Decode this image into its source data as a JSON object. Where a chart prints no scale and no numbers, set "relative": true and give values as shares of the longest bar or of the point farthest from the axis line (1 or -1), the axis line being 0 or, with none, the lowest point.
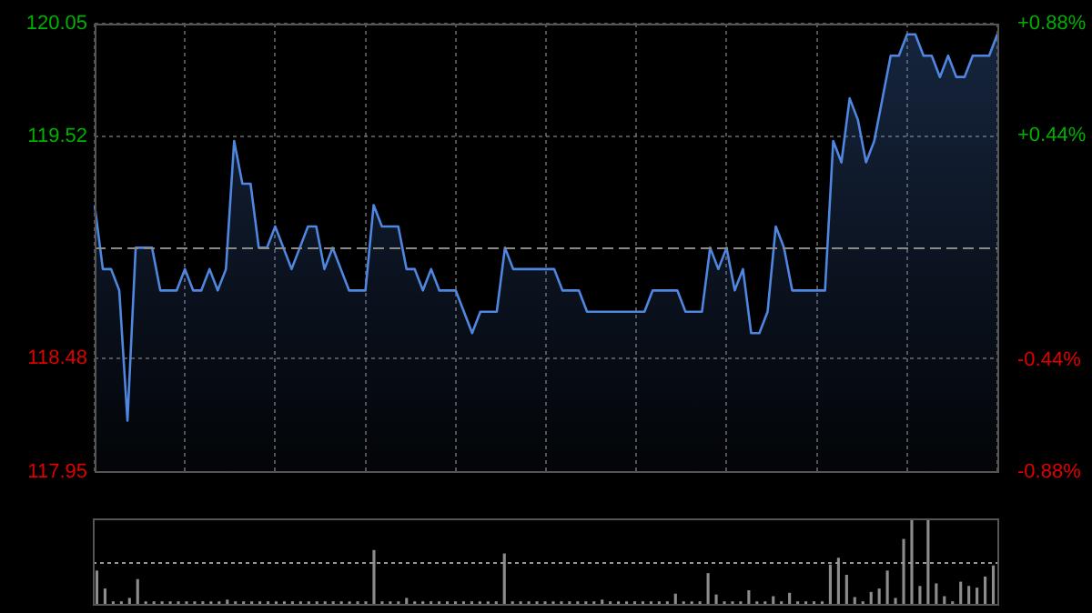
{
  "chart_data": [
    {
      "type": "area",
      "categories": [
        null,
        null,
        null,
        null,
        null,
        null,
        null,
        null,
        null,
        null,
        null,
        null,
        null,
        null,
        null,
        null,
        null,
        null,
        null,
        null,
        null,
        null,
        null,
        null,
        null,
        null,
        null,
        null,
        null,
        null,
        null,
        null,
        null,
        null,
        null,
        null,
        null,
        null,
        null,
        null,
        null,
        null,
        null,
        null,
        null,
        null,
        null,
        null,
        null,
        null,
        null,
        null,
        null,
        null,
        null,
        null,
        null,
        null,
        null,
        null,
        null,
        null,
        null,
        null,
        null,
        null,
        null,
        null,
        null,
        null,
        null,
        null,
        null,
        null,
        null,
        null,
        null,
        null,
        null,
        null,
        null,
        null,
        null,
        null,
        null,
        null,
        null,
        null,
        null,
        null,
        null,
        null,
        null,
        null,
        null,
        null,
        null,
        null,
        null,
        null,
        null,
        null,
        null,
        null,
        null,
        null,
        null,
        null,
        null,
        null,
        null
      ],
      "series": [
        {
          "color": "#4f86e0",
          "values": [
            119.2,
            118.9,
            118.9,
            118.8,
            118.19,
            119.0,
            119.0,
            119.0,
            118.8,
            118.8,
            118.8,
            118.9,
            118.8,
            118.8,
            118.9,
            118.8,
            118.9,
            119.5,
            119.3,
            119.3,
            119.0,
            119.0,
            119.1,
            119.0,
            118.9,
            119.0,
            119.1,
            119.1,
            118.9,
            119.0,
            118.9,
            118.8,
            118.8,
            118.8,
            119.2,
            119.1,
            119.1,
            119.1,
            118.9,
            118.9,
            118.8,
            118.9,
            118.8,
            118.8,
            118.8,
            118.7,
            118.6,
            118.7,
            118.7,
            118.7,
            119.0,
            118.9,
            118.9,
            118.9,
            118.9,
            118.9,
            118.9,
            118.8,
            118.8,
            118.8,
            118.7,
            118.7,
            118.7,
            118.7,
            118.7,
            118.7,
            118.7,
            118.7,
            118.8,
            118.8,
            118.8,
            118.8,
            118.7,
            118.7,
            118.7,
            119.0,
            118.9,
            119.0,
            118.8,
            118.9,
            118.6,
            118.6,
            118.7,
            119.1,
            119.0,
            118.8,
            118.8,
            118.8,
            118.8,
            118.8,
            119.5,
            119.4,
            119.7,
            119.6,
            119.4,
            119.5,
            119.7,
            119.9,
            119.9,
            120.0,
            120.0,
            119.9,
            119.9,
            119.8,
            119.9,
            119.8,
            119.8,
            119.9,
            119.9,
            119.9,
            120.0
          ]
        }
      ],
      "ylim": [
        117.95,
        120.05
      ],
      "yticks": [
        117.95,
        118.48,
        119.52,
        120.05
      ],
      "y2lim": [
        -0.88,
        0.88
      ],
      "y2ticks": [
        {
          "value": -0.88,
          "label": "-0.88%"
        },
        {
          "value": -0.44,
          "label": "-0.44%"
        },
        {
          "value": 0.44,
          "label": "+0.44%"
        },
        {
          "value": 0.88,
          "label": "+0.88%"
        }
      ],
      "ref_lines": [
        {
          "axis": "y",
          "value": 119.0,
          "color": "#8a8a8a",
          "line_style": "dashed"
        }
      ],
      "grid": true,
      "legend": false,
      "marker": "none",
      "line_style": "solid"
    },
    {
      "type": "bar",
      "relative": true,
      "color": "#8c8c8c",
      "legend": false,
      "ref_lines": [
        {
          "axis": "y",
          "value": 0.5,
          "color": "#969696",
          "line_style": "dotted"
        }
      ],
      "categories": [
        null,
        null,
        null,
        null,
        null,
        null,
        null,
        null,
        null,
        null,
        null,
        null,
        null,
        null,
        null,
        null,
        null,
        null,
        null,
        null,
        null,
        null,
        null,
        null,
        null,
        null,
        null,
        null,
        null,
        null,
        null,
        null,
        null,
        null,
        null,
        null,
        null,
        null,
        null,
        null,
        null,
        null,
        null,
        null,
        null,
        null,
        null,
        null,
        null,
        null,
        null,
        null,
        null,
        null,
        null,
        null,
        null,
        null,
        null,
        null,
        null,
        null,
        null,
        null,
        null,
        null,
        null,
        null,
        null,
        null,
        null,
        null,
        null,
        null,
        null,
        null,
        null,
        null,
        null,
        null,
        null,
        null,
        null,
        null,
        null,
        null,
        null,
        null,
        null,
        null,
        null,
        null,
        null,
        null,
        null,
        null,
        null,
        null,
        null,
        null,
        null,
        null,
        null,
        null,
        null,
        null,
        null,
        null,
        null,
        null,
        null
      ],
      "values": [
        0.39,
        0.18,
        0.03,
        0.03,
        0.07,
        0.29,
        0.03,
        0.03,
        0.03,
        0.03,
        0.03,
        0.03,
        0.03,
        0.03,
        0.03,
        0.03,
        0.05,
        0.03,
        0.03,
        0.03,
        0.03,
        0.03,
        0.03,
        0.03,
        0.03,
        0.03,
        0.03,
        0.03,
        0.03,
        0.03,
        0.03,
        0.03,
        0.03,
        0.03,
        0.63,
        0.03,
        0.03,
        0.03,
        0.07,
        0.03,
        0.03,
        0.03,
        0.03,
        0.03,
        0.03,
        0.03,
        0.03,
        0.03,
        0.03,
        0.03,
        0.59,
        0.03,
        0.03,
        0.03,
        0.03,
        0.03,
        0.03,
        0.03,
        0.03,
        0.03,
        0.03,
        0.03,
        0.05,
        0.03,
        0.03,
        0.03,
        0.03,
        0.03,
        0.03,
        0.03,
        0.03,
        0.12,
        0.03,
        0.03,
        0.03,
        0.36,
        0.11,
        0.03,
        0.03,
        0.03,
        0.16,
        0.03,
        0.03,
        0.09,
        0.03,
        0.13,
        0.03,
        0.03,
        0.03,
        0.03,
        0.46,
        0.54,
        0.34,
        0.08,
        0.03,
        0.14,
        0.18,
        0.39,
        0.07,
        0.76,
        1,
        0.21,
        1,
        0.24,
        0.09,
        0.03,
        0.26,
        0.21,
        0.19,
        0.32,
        0.45
      ]
    }
  ]
}
